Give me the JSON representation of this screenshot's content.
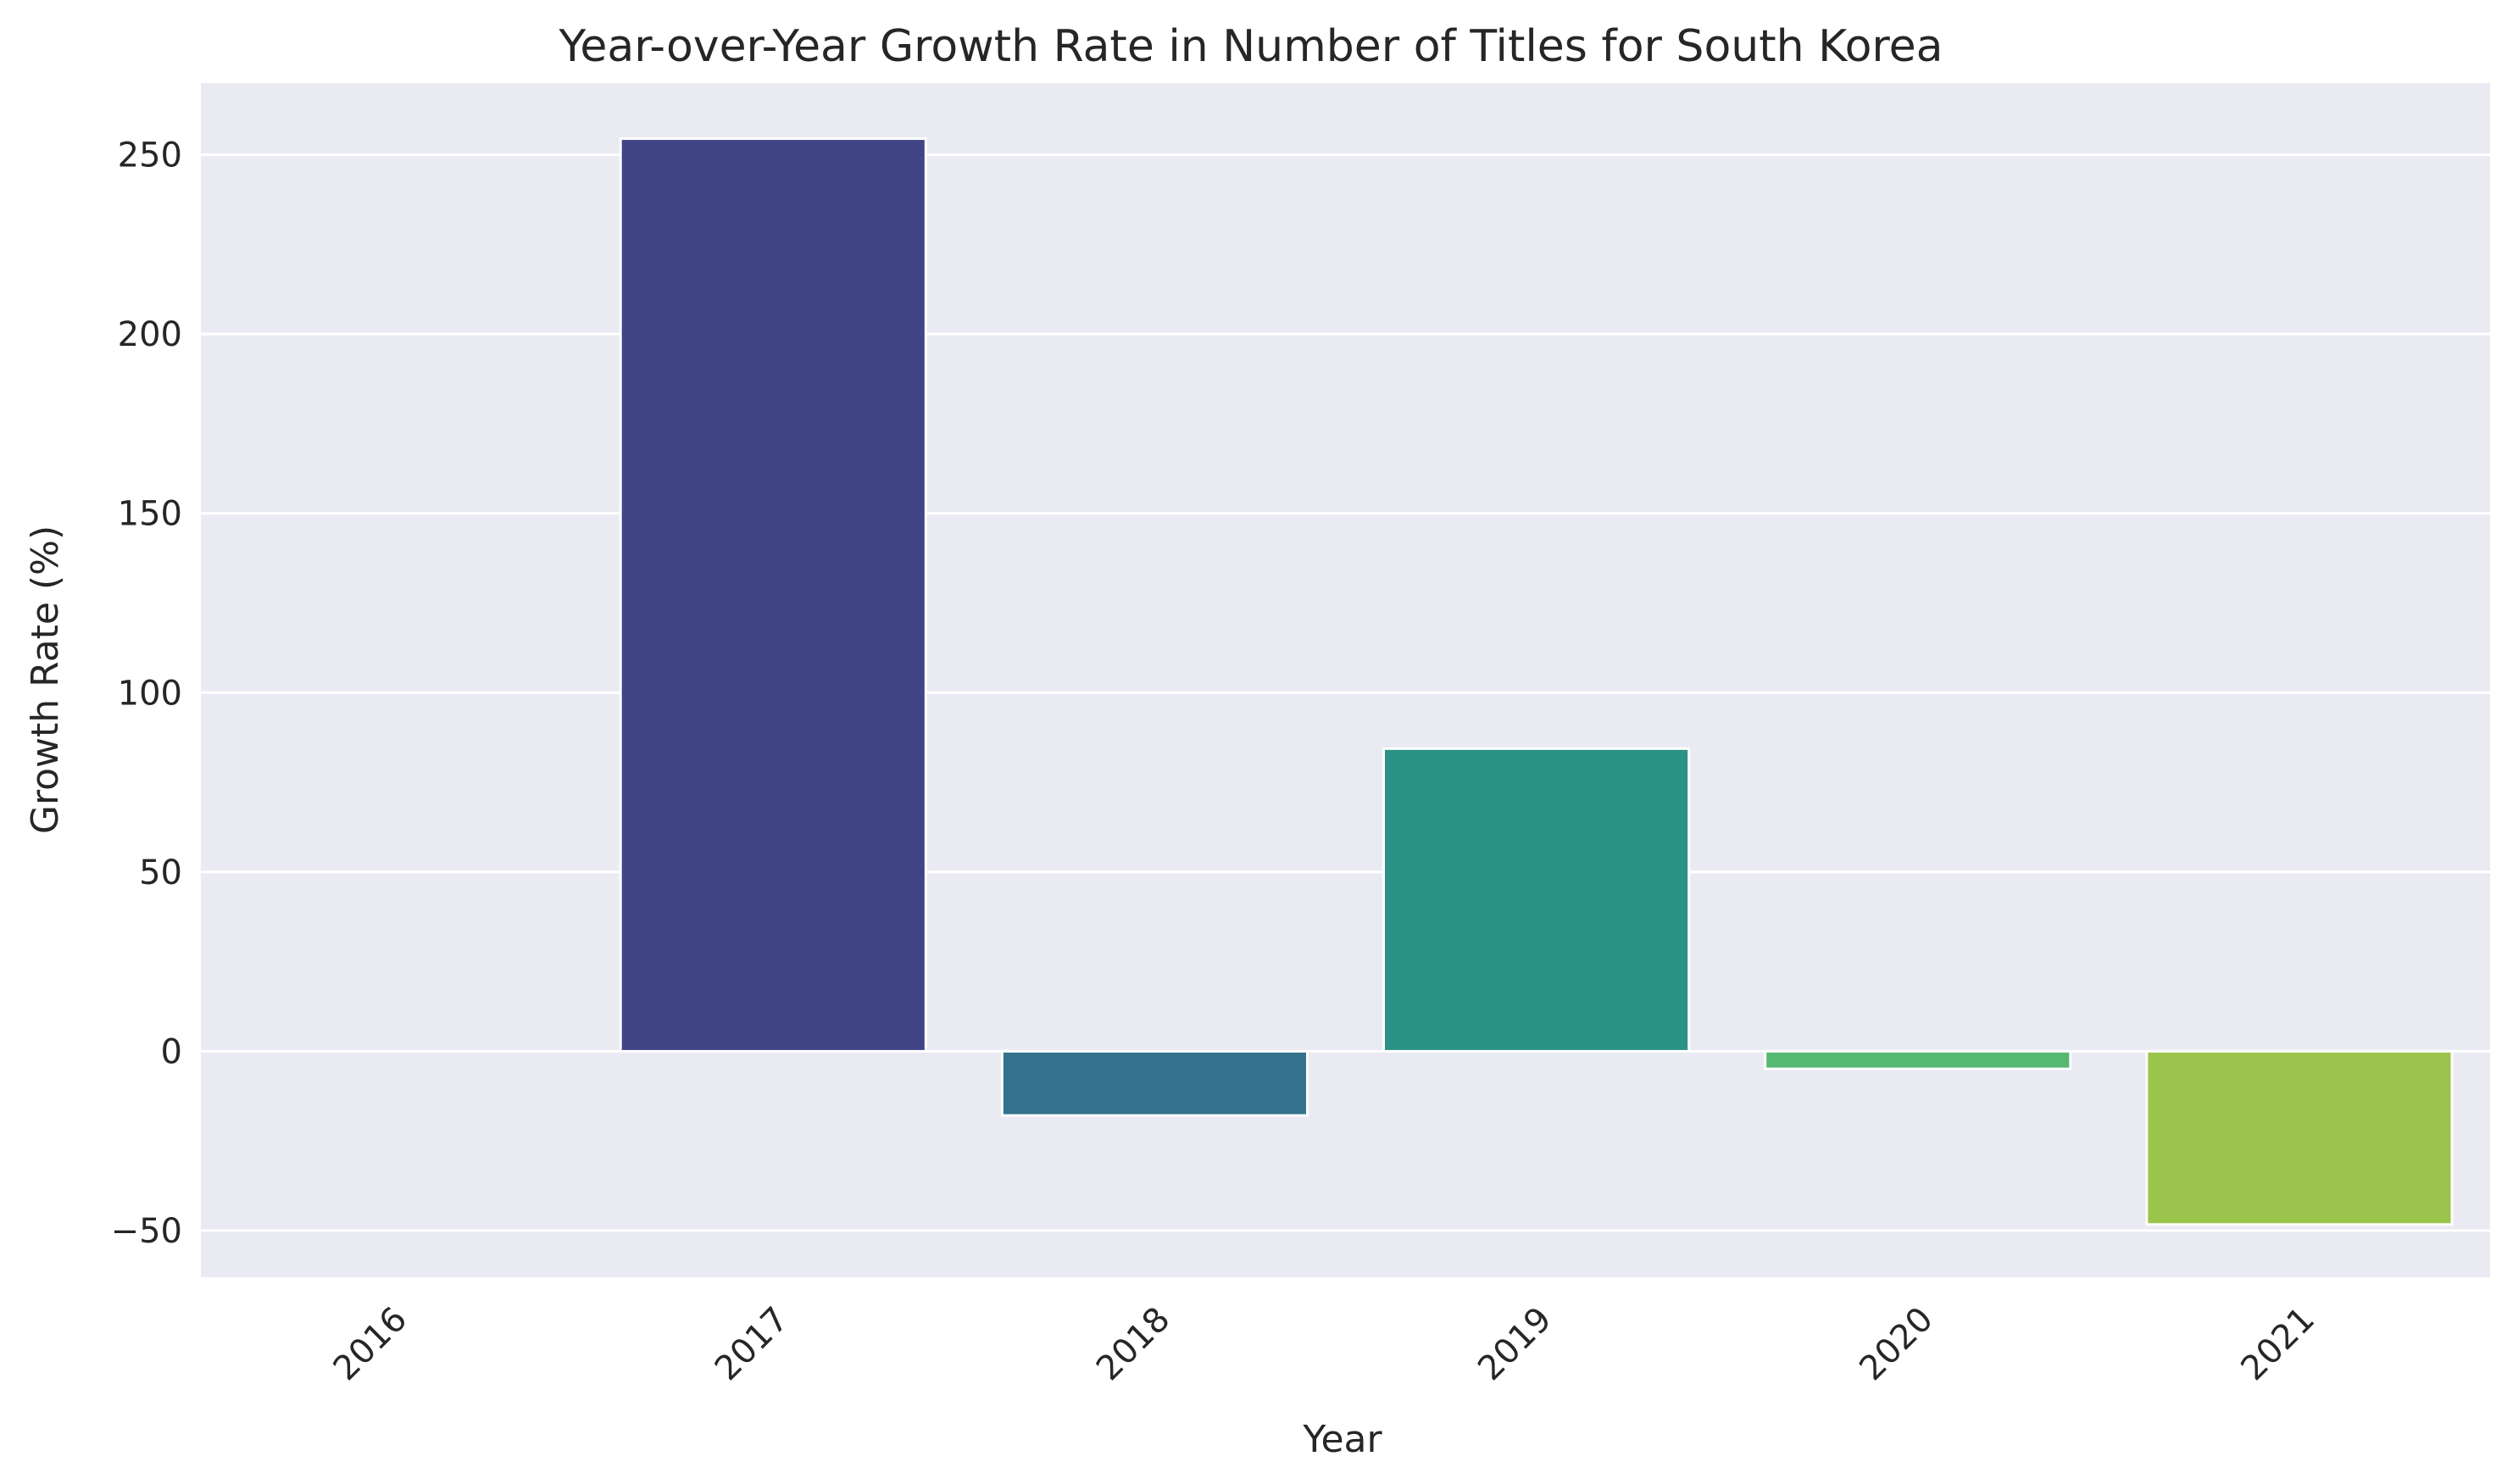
{
  "chart_data": {
    "type": "bar",
    "title": "Year-over-Year Growth Rate in Number of Titles for South Korea",
    "xlabel": "Year",
    "ylabel": "Growth Rate (%)",
    "categories": [
      "2016",
      "2017",
      "2018",
      "2019",
      "2020",
      "2021"
    ],
    "values": [
      null,
      254.5,
      -17.9,
      84.4,
      -4.9,
      -48.3
    ],
    "ylim": [
      -63,
      270
    ],
    "yticks": [
      -50,
      0,
      50,
      100,
      150,
      200,
      250
    ],
    "ytick_labels": [
      "−50",
      "0",
      "50",
      "100",
      "150",
      "200",
      "250"
    ],
    "grid": true,
    "colors": [
      "#482576",
      "#414487",
      "#35728d",
      "#2b9185",
      "#57b871",
      "#9ac44b"
    ],
    "background": "#eaeaf2"
  }
}
